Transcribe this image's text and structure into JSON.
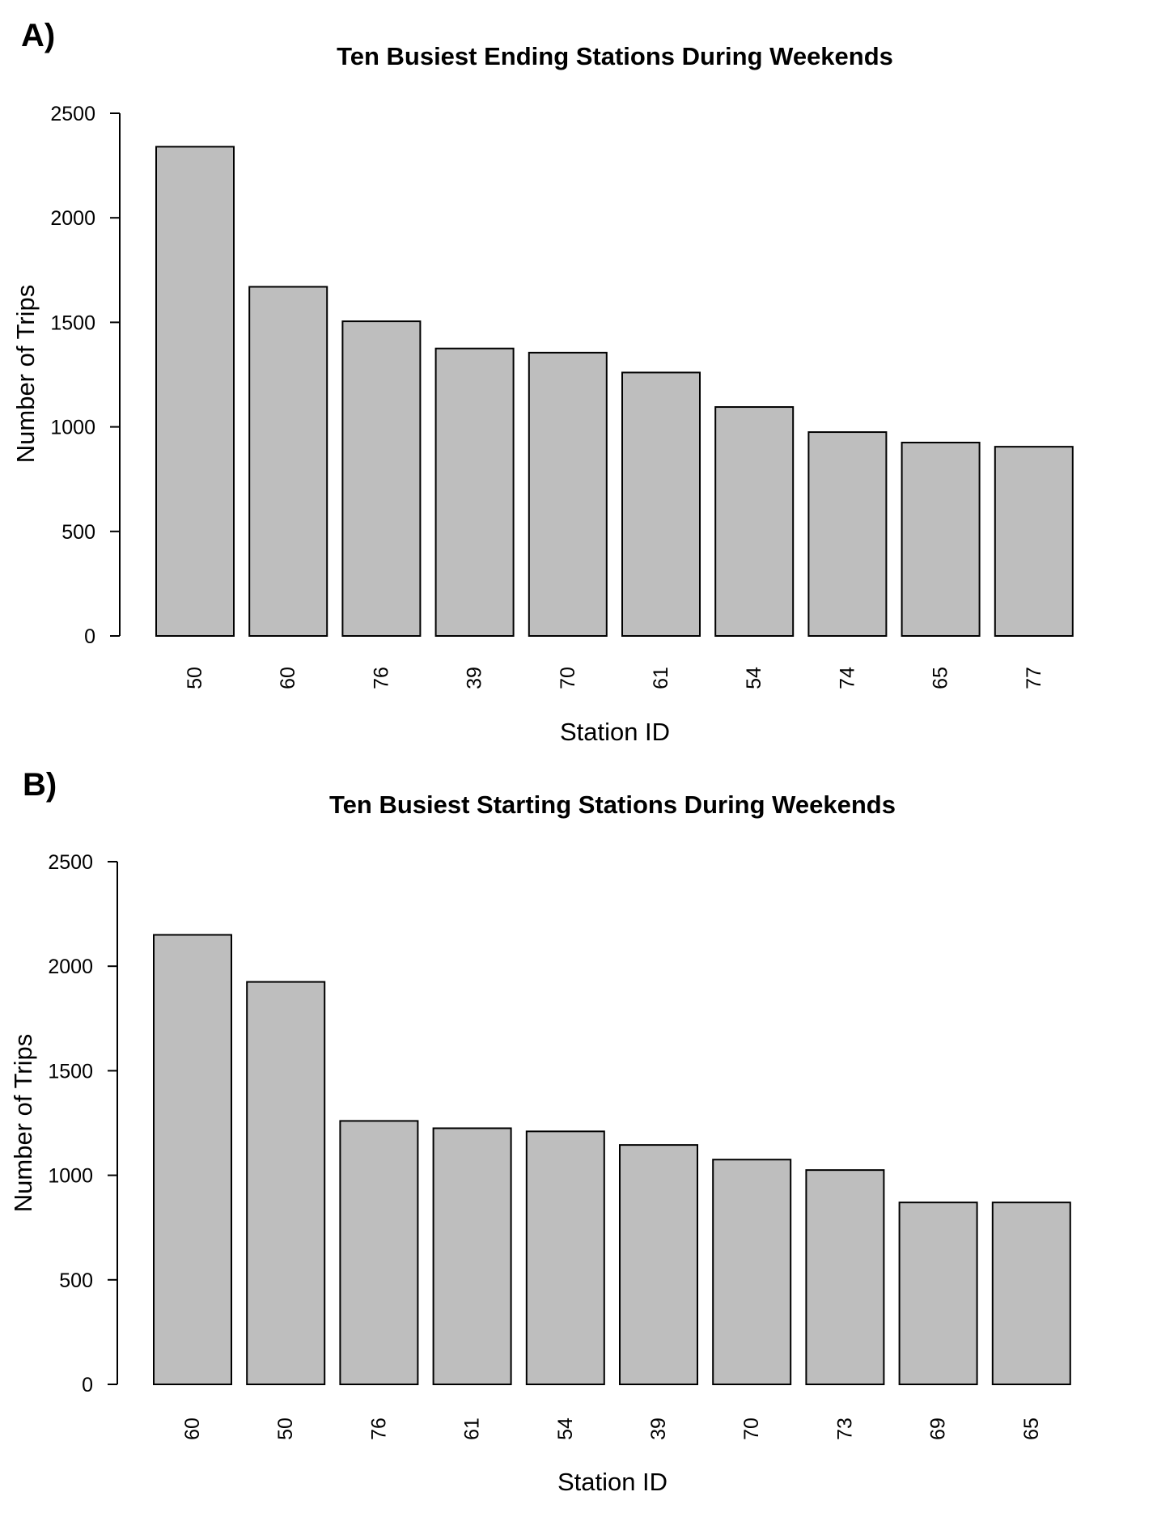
{
  "panels": [
    {
      "label": "A)"
    },
    {
      "label": "B)"
    }
  ],
  "colors": {
    "bar_fill": "#bebebe",
    "bar_stroke": "#000000"
  },
  "chart_data": [
    {
      "type": "bar",
      "title": "Ten Busiest Ending Stations During Weekends",
      "xlabel": "Station ID",
      "ylabel": "Number of Trips",
      "categories": [
        "50",
        "60",
        "76",
        "39",
        "70",
        "61",
        "54",
        "74",
        "65",
        "77"
      ],
      "values": [
        2340,
        1670,
        1505,
        1375,
        1355,
        1260,
        1095,
        975,
        925,
        905
      ],
      "ylim": [
        0,
        2500
      ],
      "yticks": [
        "0",
        "500",
        "1000",
        "1500",
        "2000",
        "2500"
      ],
      "grid": false,
      "legend": "none"
    },
    {
      "type": "bar",
      "title": "Ten Busiest Starting Stations During Weekends",
      "xlabel": "Station ID",
      "ylabel": "Number of Trips",
      "categories": [
        "60",
        "50",
        "76",
        "61",
        "54",
        "39",
        "70",
        "73",
        "69",
        "65"
      ],
      "values": [
        2150,
        1925,
        1260,
        1225,
        1210,
        1145,
        1075,
        1025,
        870,
        870
      ],
      "ylim": [
        0,
        2500
      ],
      "yticks": [
        "0",
        "500",
        "1000",
        "1500",
        "2000",
        "2500"
      ],
      "grid": false,
      "legend": "none"
    }
  ]
}
